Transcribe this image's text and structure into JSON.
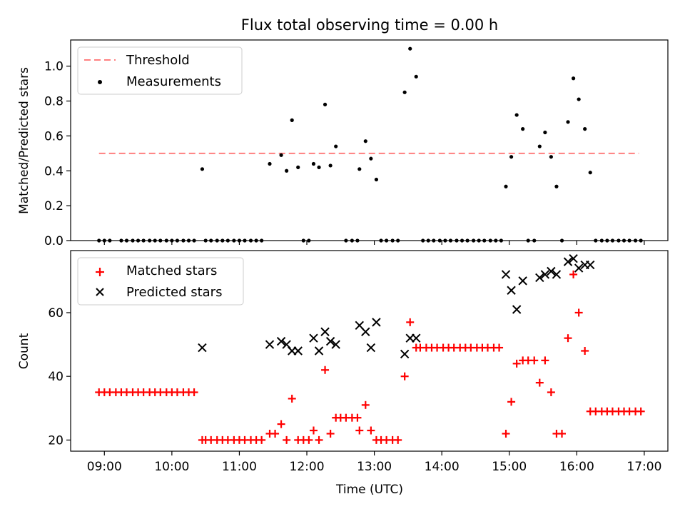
{
  "chart_data": [
    {
      "type": "scatter",
      "title": "Flux total observing time = 0.00 h",
      "xlabel": "",
      "ylabel": "Matched/Predicted stars",
      "xlim": [
        8.5,
        17.35
      ],
      "ylim": [
        0,
        1.15
      ],
      "yticks": [
        0.0,
        0.2,
        0.4,
        0.6,
        0.8,
        1.0
      ],
      "ytick_labels": [
        "0.0",
        "0.2",
        "0.4",
        "0.6",
        "0.8",
        "1.0"
      ],
      "xticks": [
        9,
        10,
        11,
        12,
        13,
        14,
        15,
        16,
        17
      ],
      "legend_position": "top-left",
      "threshold": {
        "name": "Threshold",
        "value": 0.5,
        "x_range": [
          8.92,
          16.92
        ],
        "color": "#ff7f7f"
      },
      "series": [
        {
          "name": "Measurements",
          "color": "#000000",
          "marker": "dot",
          "points": [
            [
              8.92,
              0
            ],
            [
              9.0,
              0
            ],
            [
              9.08,
              0
            ],
            [
              9.25,
              0
            ],
            [
              9.33,
              0
            ],
            [
              9.42,
              0
            ],
            [
              9.5,
              0
            ],
            [
              9.58,
              0
            ],
            [
              9.67,
              0
            ],
            [
              9.75,
              0
            ],
            [
              9.83,
              0
            ],
            [
              9.92,
              0
            ],
            [
              10.0,
              0
            ],
            [
              10.08,
              0
            ],
            [
              10.17,
              0
            ],
            [
              10.25,
              0
            ],
            [
              10.33,
              0
            ],
            [
              10.45,
              0.41
            ],
            [
              10.5,
              0
            ],
            [
              10.58,
              0
            ],
            [
              10.67,
              0
            ],
            [
              10.75,
              0
            ],
            [
              10.83,
              0
            ],
            [
              10.92,
              0
            ],
            [
              11.0,
              0
            ],
            [
              11.08,
              0
            ],
            [
              11.17,
              0
            ],
            [
              11.25,
              0
            ],
            [
              11.33,
              0
            ],
            [
              11.45,
              0.44
            ],
            [
              11.62,
              0.49
            ],
            [
              11.7,
              0.4
            ],
            [
              11.78,
              0.69
            ],
            [
              11.87,
              0.42
            ],
            [
              11.95,
              0
            ],
            [
              12.03,
              0
            ],
            [
              12.1,
              0.44
            ],
            [
              12.18,
              0.42
            ],
            [
              12.27,
              0.78
            ],
            [
              12.35,
              0.43
            ],
            [
              12.43,
              0.54
            ],
            [
              12.58,
              0
            ],
            [
              12.67,
              0
            ],
            [
              12.75,
              0
            ],
            [
              12.78,
              0.41
            ],
            [
              12.87,
              0.57
            ],
            [
              12.95,
              0.47
            ],
            [
              13.03,
              0.35
            ],
            [
              13.1,
              0
            ],
            [
              13.18,
              0
            ],
            [
              13.27,
              0
            ],
            [
              13.35,
              0
            ],
            [
              13.45,
              0.85
            ],
            [
              13.53,
              1.1
            ],
            [
              13.62,
              0.94
            ],
            [
              13.72,
              0
            ],
            [
              13.8,
              0
            ],
            [
              13.88,
              0
            ],
            [
              13.97,
              0
            ],
            [
              14.05,
              0
            ],
            [
              14.13,
              0
            ],
            [
              14.22,
              0
            ],
            [
              14.3,
              0
            ],
            [
              14.38,
              0
            ],
            [
              14.47,
              0
            ],
            [
              14.55,
              0
            ],
            [
              14.63,
              0
            ],
            [
              14.72,
              0
            ],
            [
              14.8,
              0
            ],
            [
              14.88,
              0
            ],
            [
              14.95,
              0.31
            ],
            [
              15.03,
              0.48
            ],
            [
              15.11,
              0.72
            ],
            [
              15.2,
              0.64
            ],
            [
              15.28,
              0
            ],
            [
              15.37,
              0
            ],
            [
              15.45,
              0.54
            ],
            [
              15.53,
              0.62
            ],
            [
              15.62,
              0.48
            ],
            [
              15.7,
              0.31
            ],
            [
              15.78,
              0
            ],
            [
              15.87,
              0.68
            ],
            [
              15.95,
              0.93
            ],
            [
              16.03,
              0.81
            ],
            [
              16.12,
              0.64
            ],
            [
              16.2,
              0.39
            ],
            [
              16.28,
              0
            ],
            [
              16.37,
              0
            ],
            [
              16.45,
              0
            ],
            [
              16.53,
              0
            ],
            [
              16.62,
              0
            ],
            [
              16.7,
              0
            ],
            [
              16.78,
              0
            ],
            [
              16.87,
              0
            ],
            [
              16.95,
              0
            ]
          ]
        }
      ]
    },
    {
      "type": "scatter",
      "title": "",
      "xlabel": "Time (UTC)",
      "ylabel": "Count",
      "xlim": [
        8.5,
        17.35
      ],
      "ylim": [
        16.5,
        79.5
      ],
      "yticks": [
        20,
        40,
        60
      ],
      "ytick_labels": [
        "20",
        "40",
        "60"
      ],
      "xticks": [
        9,
        10,
        11,
        12,
        13,
        14,
        15,
        16,
        17
      ],
      "xtick_labels": [
        "09:00",
        "10:00",
        "11:00",
        "12:00",
        "13:00",
        "14:00",
        "15:00",
        "16:00",
        "17:00"
      ],
      "legend_position": "top-left",
      "series": [
        {
          "name": "Matched stars",
          "color": "#ff0000",
          "marker": "plus",
          "points": [
            [
              8.92,
              35
            ],
            [
              9.0,
              35
            ],
            [
              9.08,
              35
            ],
            [
              9.17,
              35
            ],
            [
              9.25,
              35
            ],
            [
              9.33,
              35
            ],
            [
              9.42,
              35
            ],
            [
              9.5,
              35
            ],
            [
              9.58,
              35
            ],
            [
              9.67,
              35
            ],
            [
              9.75,
              35
            ],
            [
              9.83,
              35
            ],
            [
              9.92,
              35
            ],
            [
              10.0,
              35
            ],
            [
              10.08,
              35
            ],
            [
              10.17,
              35
            ],
            [
              10.25,
              35
            ],
            [
              10.33,
              35
            ],
            [
              10.45,
              20
            ],
            [
              10.5,
              20
            ],
            [
              10.58,
              20
            ],
            [
              10.67,
              20
            ],
            [
              10.75,
              20
            ],
            [
              10.83,
              20
            ],
            [
              10.92,
              20
            ],
            [
              11.0,
              20
            ],
            [
              11.08,
              20
            ],
            [
              11.17,
              20
            ],
            [
              11.25,
              20
            ],
            [
              11.33,
              20
            ],
            [
              11.45,
              22
            ],
            [
              11.53,
              22
            ],
            [
              11.62,
              25
            ],
            [
              11.7,
              20
            ],
            [
              11.78,
              33
            ],
            [
              11.87,
              20
            ],
            [
              11.95,
              20
            ],
            [
              12.03,
              20
            ],
            [
              12.1,
              23
            ],
            [
              12.18,
              20
            ],
            [
              12.27,
              42
            ],
            [
              12.35,
              22
            ],
            [
              12.43,
              27
            ],
            [
              12.5,
              27
            ],
            [
              12.58,
              27
            ],
            [
              12.67,
              27
            ],
            [
              12.75,
              27
            ],
            [
              12.78,
              23
            ],
            [
              12.87,
              31
            ],
            [
              12.95,
              23
            ],
            [
              13.03,
              20
            ],
            [
              13.1,
              20
            ],
            [
              13.18,
              20
            ],
            [
              13.27,
              20
            ],
            [
              13.35,
              20
            ],
            [
              13.45,
              40
            ],
            [
              13.53,
              57
            ],
            [
              13.62,
              49
            ],
            [
              13.68,
              49
            ],
            [
              13.77,
              49
            ],
            [
              13.85,
              49
            ],
            [
              13.93,
              49
            ],
            [
              14.02,
              49
            ],
            [
              14.1,
              49
            ],
            [
              14.18,
              49
            ],
            [
              14.27,
              49
            ],
            [
              14.35,
              49
            ],
            [
              14.43,
              49
            ],
            [
              14.52,
              49
            ],
            [
              14.6,
              49
            ],
            [
              14.68,
              49
            ],
            [
              14.77,
              49
            ],
            [
              14.85,
              49
            ],
            [
              14.95,
              22
            ],
            [
              15.03,
              32
            ],
            [
              15.11,
              44
            ],
            [
              15.2,
              45
            ],
            [
              15.28,
              45
            ],
            [
              15.37,
              45
            ],
            [
              15.45,
              38
            ],
            [
              15.53,
              45
            ],
            [
              15.62,
              35
            ],
            [
              15.7,
              22
            ],
            [
              15.78,
              22
            ],
            [
              15.87,
              52
            ],
            [
              15.95,
              72
            ],
            [
              16.03,
              60
            ],
            [
              16.12,
              48
            ],
            [
              16.2,
              29
            ],
            [
              16.28,
              29
            ],
            [
              16.37,
              29
            ],
            [
              16.45,
              29
            ],
            [
              16.53,
              29
            ],
            [
              16.62,
              29
            ],
            [
              16.7,
              29
            ],
            [
              16.78,
              29
            ],
            [
              16.87,
              29
            ],
            [
              16.95,
              29
            ]
          ]
        },
        {
          "name": "Predicted stars",
          "color": "#000000",
          "marker": "x",
          "points": [
            [
              10.45,
              49
            ],
            [
              11.45,
              50
            ],
            [
              11.62,
              51
            ],
            [
              11.7,
              50
            ],
            [
              11.78,
              48
            ],
            [
              11.87,
              48
            ],
            [
              12.1,
              52
            ],
            [
              12.18,
              48
            ],
            [
              12.27,
              54
            ],
            [
              12.35,
              51
            ],
            [
              12.43,
              50
            ],
            [
              12.78,
              56
            ],
            [
              12.87,
              54
            ],
            [
              12.95,
              49
            ],
            [
              13.03,
              57
            ],
            [
              13.45,
              47
            ],
            [
              13.53,
              52
            ],
            [
              13.62,
              52
            ],
            [
              14.95,
              72
            ],
            [
              15.03,
              67
            ],
            [
              15.11,
              61
            ],
            [
              15.2,
              70
            ],
            [
              15.45,
              71
            ],
            [
              15.53,
              72
            ],
            [
              15.62,
              73
            ],
            [
              15.7,
              72
            ],
            [
              15.87,
              76
            ],
            [
              15.95,
              77
            ],
            [
              16.03,
              74
            ],
            [
              16.12,
              75
            ],
            [
              16.2,
              75
            ]
          ]
        }
      ]
    }
  ]
}
